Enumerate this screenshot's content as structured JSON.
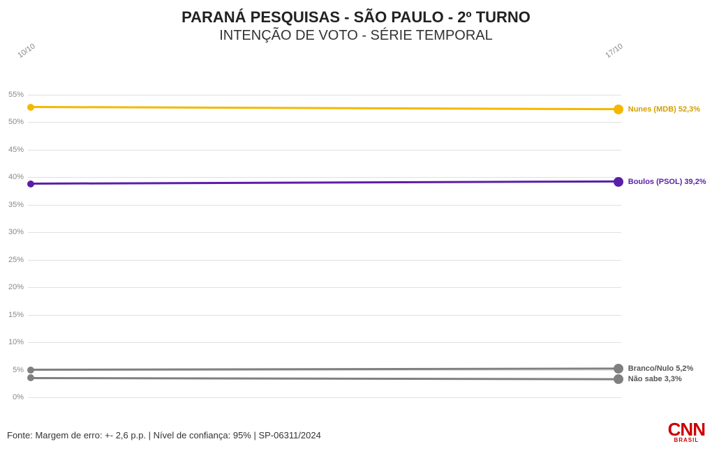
{
  "title": "PARANÁ PESQUISAS - SÃO PAULO - 2º TURNO",
  "subtitle": "INTENÇÃO DE VOTO - SÉRIE TEMPORAL",
  "title_fontsize": 22,
  "subtitle_fontsize": 20,
  "source": "Fonte: Margem de erro: +- 2,6 p.p. | Nível de confiança: 95% | SP-06311/2024",
  "logo": {
    "main": "CNN",
    "sub": "BRASIL",
    "color": "#cc0000"
  },
  "chart": {
    "type": "line",
    "background_color": "#ffffff",
    "grid_color": "#e0e0e0",
    "tick_color": "#888888",
    "ylim": [
      0,
      57
    ],
    "ytick_step": 5,
    "yticks": [
      0,
      5,
      10,
      15,
      20,
      25,
      30,
      35,
      40,
      45,
      50,
      55
    ],
    "ytick_suffix": "%",
    "xticks": [
      "10/10",
      "17/10"
    ],
    "x_positions_pct": [
      0.5,
      99.5
    ],
    "line_width": 3,
    "marker_size": 10,
    "endmarker_size": 14,
    "series": [
      {
        "name": "Nunes (MDB)",
        "color": "#f5b800",
        "label_color": "#d49f00",
        "values": [
          52.7,
          52.3
        ],
        "end_label": "Nunes (MDB) 52,3%"
      },
      {
        "name": "Boulos (PSOL)",
        "color": "#5a1fa8",
        "label_color": "#5a1fa8",
        "values": [
          38.8,
          39.2
        ],
        "end_label": "Boulos (PSOL) 39,2%"
      },
      {
        "name": "Branco/Nulo",
        "color": "#808080",
        "label_color": "#555555",
        "values": [
          5.0,
          5.2
        ],
        "end_label": "Branco/Nulo 5,2%"
      },
      {
        "name": "Não sabe",
        "color": "#808080",
        "label_color": "#555555",
        "values": [
          3.5,
          3.3
        ],
        "end_label": "Não sabe 3,3%"
      }
    ]
  }
}
